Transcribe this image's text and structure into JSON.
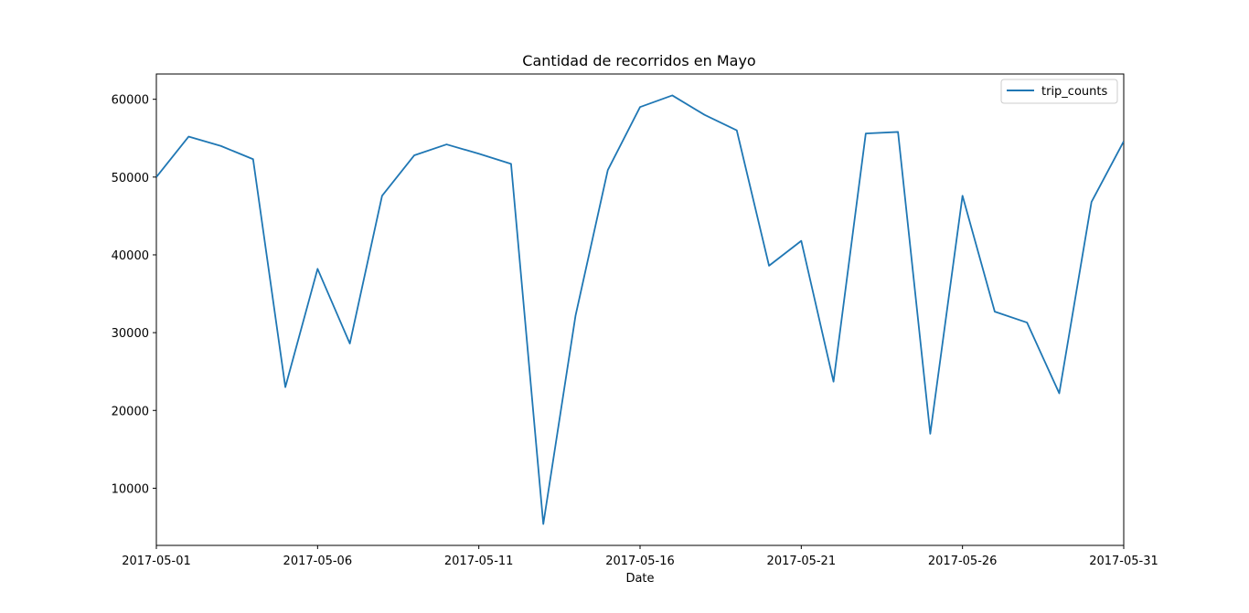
{
  "chart_data": {
    "type": "line",
    "title": "Cantidad de recorridos en Mayo",
    "xlabel": "Date",
    "ylabel": "",
    "x": [
      "2017-05-01",
      "2017-05-02",
      "2017-05-03",
      "2017-05-04",
      "2017-05-05",
      "2017-05-06",
      "2017-05-07",
      "2017-05-08",
      "2017-05-09",
      "2017-05-10",
      "2017-05-11",
      "2017-05-12",
      "2017-05-13",
      "2017-05-14",
      "2017-05-15",
      "2017-05-16",
      "2017-05-17",
      "2017-05-18",
      "2017-05-19",
      "2017-05-20",
      "2017-05-21",
      "2017-05-22",
      "2017-05-23",
      "2017-05-24",
      "2017-05-25",
      "2017-05-26",
      "2017-05-27",
      "2017-05-28",
      "2017-05-29",
      "2017-05-30",
      "2017-05-31"
    ],
    "series": [
      {
        "name": "trip_counts",
        "color": "#1f77b4",
        "values": [
          50000,
          55200,
          54000,
          52300,
          23000,
          38200,
          28600,
          47600,
          52800,
          54200,
          53000,
          51700,
          5400,
          32200,
          50900,
          59000,
          60500,
          58000,
          56000,
          38600,
          41800,
          23700,
          55600,
          55800,
          17000,
          47600,
          32700,
          31300,
          22200,
          46800,
          54600
        ]
      }
    ],
    "xticks": [
      "2017-05-01",
      "2017-05-06",
      "2017-05-11",
      "2017-05-16",
      "2017-05-21",
      "2017-05-26",
      "2017-05-31"
    ],
    "yticks": [
      10000,
      20000,
      30000,
      40000,
      50000,
      60000
    ],
    "xlim": [
      "2017-05-01",
      "2017-05-31"
    ],
    "ylim": [
      2650,
      63250
    ],
    "legend_position": "top-right",
    "grid": false
  }
}
